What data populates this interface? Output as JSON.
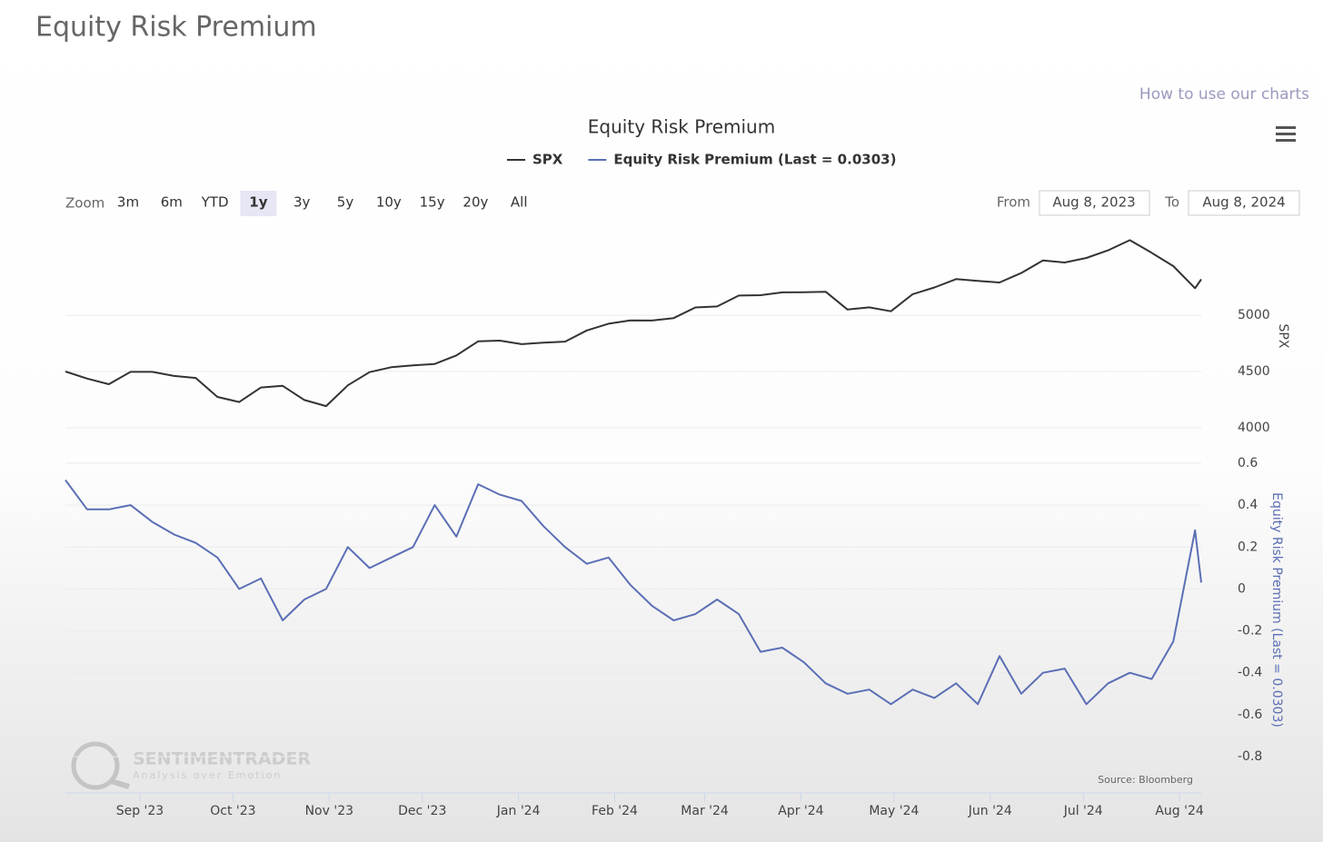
{
  "header": {
    "title": "Equity Risk Premium",
    "help_link": "How to use our charts"
  },
  "range_selector": {
    "zoom_label": "Zoom",
    "buttons": [
      "3m",
      "6m",
      "YTD",
      "1y",
      "3y",
      "5y",
      "10y",
      "15y",
      "20y",
      "All"
    ],
    "selected": "1y",
    "from_label": "From",
    "from": "Aug 8, 2023",
    "to_label": "To",
    "to": "Aug 8, 2024"
  },
  "credits": {
    "watermark": "SENTIMENTRADER",
    "tagline": "Analysis over Emotion",
    "source": "Source: Bloomberg"
  },
  "chart_data": {
    "type": "line",
    "title": "Equity Risk Premium",
    "x": [
      "2023-08-08",
      "2023-08-15",
      "2023-08-22",
      "2023-08-29",
      "2023-09-05",
      "2023-09-12",
      "2023-09-19",
      "2023-09-26",
      "2023-10-03",
      "2023-10-10",
      "2023-10-17",
      "2023-10-24",
      "2023-10-31",
      "2023-11-07",
      "2023-11-14",
      "2023-11-21",
      "2023-11-28",
      "2023-12-05",
      "2023-12-12",
      "2023-12-19",
      "2023-12-26",
      "2024-01-02",
      "2024-01-09",
      "2024-01-16",
      "2024-01-23",
      "2024-01-30",
      "2024-02-06",
      "2024-02-13",
      "2024-02-20",
      "2024-02-27",
      "2024-03-05",
      "2024-03-12",
      "2024-03-19",
      "2024-03-26",
      "2024-04-02",
      "2024-04-09",
      "2024-04-16",
      "2024-04-23",
      "2024-04-30",
      "2024-05-07",
      "2024-05-14",
      "2024-05-21",
      "2024-05-28",
      "2024-06-04",
      "2024-06-11",
      "2024-06-18",
      "2024-06-25",
      "2024-07-02",
      "2024-07-09",
      "2024-07-16",
      "2024-07-23",
      "2024-07-30",
      "2024-08-06",
      "2024-08-08"
    ],
    "xlim": [
      "2023-08-08",
      "2024-08-08"
    ],
    "xticks": [
      {
        "value": "2023-09-01",
        "label": "Sep '23"
      },
      {
        "value": "2023-10-01",
        "label": "Oct '23"
      },
      {
        "value": "2023-11-01",
        "label": "Nov '23"
      },
      {
        "value": "2023-12-01",
        "label": "Dec '23"
      },
      {
        "value": "2024-01-01",
        "label": "Jan '24"
      },
      {
        "value": "2024-02-01",
        "label": "Feb '24"
      },
      {
        "value": "2024-03-01",
        "label": "Mar '24"
      },
      {
        "value": "2024-04-01",
        "label": "Apr '24"
      },
      {
        "value": "2024-05-01",
        "label": "May '24"
      },
      {
        "value": "2024-06-01",
        "label": "Jun '24"
      },
      {
        "value": "2024-07-01",
        "label": "Jul '24"
      },
      {
        "value": "2024-08-01",
        "label": "Aug '24"
      }
    ],
    "series": [
      {
        "name": "SPX",
        "color": "#333333",
        "axis": "y",
        "values": [
          4500,
          4437,
          4387,
          4497,
          4497,
          4461,
          4443,
          4274,
          4229,
          4358,
          4373,
          4247,
          4193,
          4378,
          4495,
          4538,
          4554,
          4567,
          4643,
          4768,
          4775,
          4743,
          4756,
          4766,
          4865,
          4925,
          4954,
          4953,
          4975,
          5069,
          5078,
          5175,
          5178,
          5203,
          5205,
          5209,
          5051,
          5070,
          5035,
          5187,
          5247,
          5321,
          5306,
          5291,
          5375,
          5487,
          5469,
          5509,
          5577,
          5667,
          5555,
          5436,
          5240,
          5319
        ]
      },
      {
        "name": "Equity Risk Premium (Last = 0.0303)",
        "color": "#5b6fb5",
        "axis": "y2",
        "values": [
          0.52,
          0.38,
          0.38,
          0.4,
          0.32,
          0.26,
          0.22,
          0.15,
          0.0,
          0.05,
          -0.15,
          -0.05,
          0.0,
          0.2,
          0.1,
          0.15,
          0.2,
          0.4,
          0.25,
          0.5,
          0.45,
          0.42,
          0.3,
          0.2,
          0.12,
          0.15,
          0.02,
          -0.08,
          -0.15,
          -0.12,
          -0.05,
          -0.12,
          -0.3,
          -0.28,
          -0.35,
          -0.45,
          -0.5,
          -0.48,
          -0.55,
          -0.48,
          -0.52,
          -0.45,
          -0.55,
          -0.32,
          -0.5,
          -0.4,
          -0.38,
          -0.55,
          -0.45,
          -0.4,
          -0.43,
          -0.25,
          0.28,
          0.0303
        ]
      }
    ],
    "ylabel": "SPX",
    "ylim": [
      4000,
      5630
    ],
    "yticks": [
      4000,
      4500,
      5000
    ],
    "y2label": "Equity Risk Premium (Last = 0.0303)",
    "y2lim": [
      -0.8,
      0.6
    ],
    "y2ticks": [
      -0.8,
      -0.6,
      -0.4,
      -0.2,
      0,
      0.2,
      0.4,
      0.6
    ],
    "grid": true
  }
}
